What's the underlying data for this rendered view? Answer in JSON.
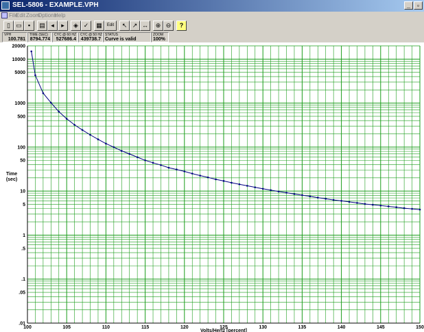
{
  "window": {
    "title": "SEL-5806 - EXAMPLE.VPH"
  },
  "menu": [
    "File",
    "Edit",
    "Zoom",
    "Options",
    "Help"
  ],
  "toolbar": {
    "edit_label": "Edit",
    "help_label": "?"
  },
  "status": {
    "vph_label": "VPH",
    "vph_value": "100.781",
    "time_label": "TIME (SEC)",
    "time_value": "8794.774",
    "cyc60_label": "CYC @ 60 HZ",
    "cyc60_value": "527686.4",
    "cyc50_label": "CYC @ 50 HZ",
    "cyc50_value": "439738.7",
    "status_label": "STATUS",
    "status_value": "Curve is valid",
    "zoom_label": "ZOOM",
    "zoom_value": "100%"
  },
  "chart_data": {
    "type": "line",
    "xlabel": "Volts/Hertz [percent]",
    "ylabel": "Time (sec)",
    "xlim": [
      100,
      150
    ],
    "ylim": [
      0.01,
      20000
    ],
    "yscale": "log",
    "grid": true,
    "x_ticks": [
      "100",
      "105",
      "110",
      "115",
      "120",
      "125",
      "130",
      "135",
      "140",
      "145",
      "150"
    ],
    "y_ticks": [
      "20000",
      "10000",
      "5000",
      "1000",
      "500",
      "100",
      "50",
      "10",
      "5",
      "1",
      ".5",
      ".1",
      ".05",
      ".01"
    ],
    "series": [
      {
        "x": [
          100.5,
          101,
          102,
          103,
          104,
          105,
          106,
          107,
          108,
          109,
          110,
          111,
          112,
          113,
          114,
          115,
          116,
          117,
          118,
          119,
          120,
          121,
          122,
          123,
          124,
          125,
          126,
          127,
          128,
          129,
          130,
          131,
          132,
          133,
          134,
          135,
          136,
          137,
          138,
          139,
          140,
          141,
          142,
          143,
          144,
          145,
          146,
          147,
          148,
          149,
          150
        ],
        "y": [
          15000,
          4300,
          1680,
          1020,
          640,
          440,
          320,
          245,
          190,
          150,
          120,
          100,
          82,
          70,
          59,
          50,
          44,
          39,
          34,
          31,
          28,
          25,
          22.5,
          20.5,
          18.5,
          17,
          15.5,
          14.3,
          13.2,
          12.2,
          11.3,
          10.5,
          9.8,
          9.2,
          8.6,
          8.1,
          7.6,
          7.1,
          6.7,
          6.3,
          6.0,
          5.7,
          5.4,
          5.1,
          4.9,
          4.7,
          4.5,
          4.3,
          4.1,
          3.95,
          3.8
        ]
      }
    ]
  }
}
